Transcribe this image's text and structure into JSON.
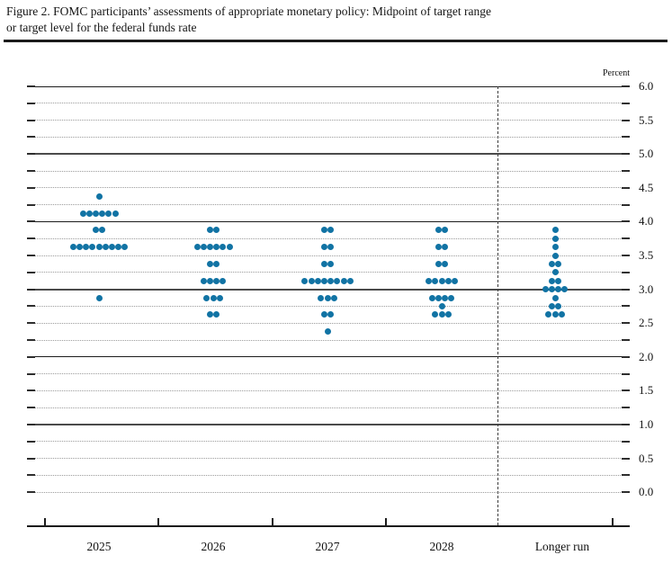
{
  "figure": {
    "title_line1": "Figure 2. FOMC participants’ assessments of appropriate monetary policy: Midpoint of target range",
    "title_line2": "or target level for the federal funds rate"
  },
  "chart_data": {
    "type": "scatter",
    "subtype": "fomc-dot-plot",
    "title": "FOMC participants’ assessments of appropriate monetary policy: Midpoint of target range or target level for the federal funds rate",
    "unit_label": "Percent",
    "ylim": [
      0.0,
      6.0
    ],
    "grid_interval": 0.25,
    "label_interval": 0.5,
    "grid_on": true,
    "legend": "none",
    "ytick_labels": [
      "6.0",
      "5.5",
      "5.0",
      "4.5",
      "4.0",
      "3.5",
      "3.0",
      "2.5",
      "2.0",
      "1.5",
      "1.0",
      "0.5",
      "0.0"
    ],
    "categories": [
      "2025",
      "2026",
      "2027",
      "2028",
      "Longer run"
    ],
    "separator_after_category": "2028",
    "dot_color": "#1173a4",
    "series": [
      {
        "category": "2025",
        "dots": [
          {
            "rate": 4.375,
            "count": 1
          },
          {
            "rate": 4.125,
            "count": 6
          },
          {
            "rate": 3.875,
            "count": 2
          },
          {
            "rate": 3.625,
            "count": 9
          },
          {
            "rate": 2.875,
            "count": 1
          }
        ]
      },
      {
        "category": "2026",
        "dots": [
          {
            "rate": 3.875,
            "count": 2
          },
          {
            "rate": 3.625,
            "count": 6
          },
          {
            "rate": 3.375,
            "count": 2
          },
          {
            "rate": 3.125,
            "count": 4
          },
          {
            "rate": 2.875,
            "count": 3
          },
          {
            "rate": 2.625,
            "count": 2
          }
        ]
      },
      {
        "category": "2027",
        "dots": [
          {
            "rate": 3.875,
            "count": 2
          },
          {
            "rate": 3.625,
            "count": 2
          },
          {
            "rate": 3.375,
            "count": 2
          },
          {
            "rate": 3.125,
            "count": 8
          },
          {
            "rate": 2.875,
            "count": 3
          },
          {
            "rate": 2.625,
            "count": 2
          },
          {
            "rate": 2.375,
            "count": 1
          }
        ]
      },
      {
        "category": "2028",
        "dots": [
          {
            "rate": 3.875,
            "count": 2
          },
          {
            "rate": 3.625,
            "count": 2
          },
          {
            "rate": 3.375,
            "count": 2
          },
          {
            "rate": 3.125,
            "count": 5
          },
          {
            "rate": 2.875,
            "count": 4
          },
          {
            "rate": 2.75,
            "count": 1
          },
          {
            "rate": 2.625,
            "count": 3
          }
        ]
      },
      {
        "category": "Longer run",
        "dots": [
          {
            "rate": 3.875,
            "count": 1
          },
          {
            "rate": 3.75,
            "count": 1
          },
          {
            "rate": 3.625,
            "count": 1
          },
          {
            "rate": 3.5,
            "count": 1
          },
          {
            "rate": 3.375,
            "count": 2
          },
          {
            "rate": 3.25,
            "count": 1
          },
          {
            "rate": 3.125,
            "count": 2
          },
          {
            "rate": 3.0,
            "count": 4
          },
          {
            "rate": 2.875,
            "count": 1
          },
          {
            "rate": 2.75,
            "count": 2
          },
          {
            "rate": 2.625,
            "count": 3
          }
        ]
      }
    ]
  }
}
